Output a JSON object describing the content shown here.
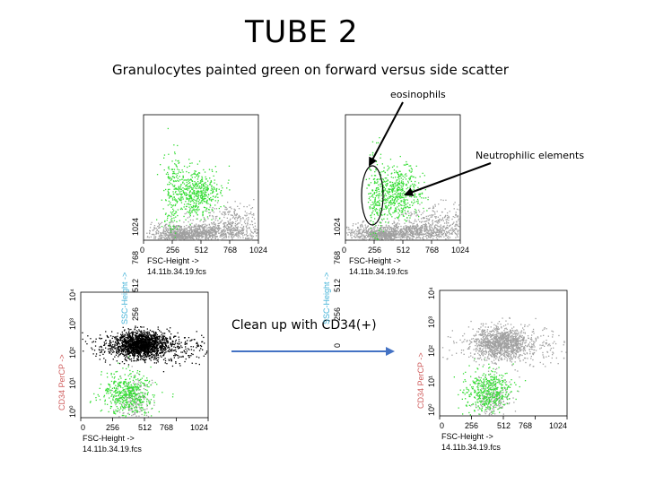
{
  "title": "TUBE 2",
  "subtitle": "Granulocytes painted green on forward versus side scatter",
  "annotations": {
    "eosinophils": "eosinophils",
    "neutrophilic": "Neutrophilic elements",
    "cleanup": "Clean up with CD34(+)"
  },
  "colors": {
    "granulocytes": "#33dd33",
    "other_events": "#a0a0a0",
    "cd34_positive": "#000000",
    "ellipse": "#000000",
    "arrow": "#4472c4",
    "ylabel": "#46b4d8",
    "ylabel_cd34": "#d06060"
  },
  "plots": [
    {
      "xlabel": "FSC-Height ->",
      "ylabel": "SSC-Height ->",
      "filename": "14.11b.34.19.fcs",
      "xticks": [
        "0",
        "256",
        "512",
        "768",
        "1024"
      ],
      "yticks": [
        "0",
        "256",
        "512",
        "768",
        "1024"
      ]
    },
    {
      "xlabel": "FSC-Height ->",
      "ylabel": "SSC-Height ->",
      "filename": "14.11b.34.19.fcs",
      "xticks": [
        "0",
        "256",
        "512",
        "768",
        "1024"
      ],
      "yticks": [
        "0",
        "256",
        "512",
        "768",
        "1024"
      ]
    },
    {
      "xlabel": "FSC-Height ->",
      "ylabel": "CD34 PerCP ->",
      "filename": "14.11b.34.19.fcs",
      "xticks": [
        "0",
        "256",
        "512",
        "768",
        "1024"
      ],
      "yticks": [
        "10⁰",
        "10¹",
        "10²",
        "10³",
        "10⁴"
      ]
    },
    {
      "xlabel": "FSC-Height ->",
      "ylabel": "CD34 PerCP ->",
      "filename": "14.11b.34.19.fcs",
      "xticks": [
        "0",
        "256",
        "512",
        "768",
        "1024"
      ],
      "yticks": [
        "10⁰",
        "10¹",
        "10²",
        "10³",
        "10⁴"
      ]
    }
  ]
}
